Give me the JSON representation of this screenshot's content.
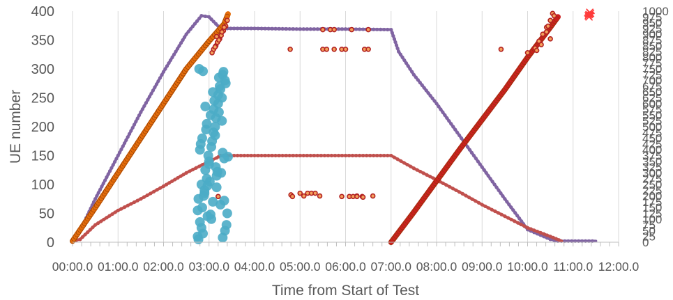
{
  "chart_data": {
    "type": "scatter",
    "title": "",
    "xlabel": "Time from Start of Test",
    "ylabel": "UE number",
    "xlim": [
      0,
      720
    ],
    "ylim": [
      0,
      400
    ],
    "y2lim": [
      0,
      1000
    ],
    "x_tick_values": [
      0,
      60,
      120,
      180,
      240,
      300,
      360,
      420,
      480,
      540,
      600,
      660,
      720
    ],
    "x_tick_labels": [
      "00:00.0",
      "01:00.0",
      "02:00.0",
      "03:00.0",
      "04:00.0",
      "05:00.0",
      "06:00.0",
      "07:00.0",
      "08:00.0",
      "09:00.0",
      "10:00.0",
      "11:00.0",
      "12:00.0"
    ],
    "y_ticks": [
      0,
      50,
      100,
      150,
      200,
      250,
      300,
      350,
      400
    ],
    "y2_ticks": [
      0,
      25,
      50,
      75,
      100,
      125,
      150,
      175,
      200,
      225,
      250,
      275,
      300,
      325,
      350,
      375,
      400,
      425,
      450,
      475,
      500,
      525,
      550,
      575,
      600,
      625,
      650,
      675,
      700,
      725,
      750,
      775,
      800,
      825,
      850,
      875,
      900,
      925,
      950,
      975,
      1000
    ],
    "grid": "vertical",
    "legend": "none",
    "series": [
      {
        "color": "#8064a2",
        "axis": "left",
        "kind": "line",
        "x": [
          0,
          10,
          30,
          60,
          90,
          120,
          150,
          170,
          180,
          195,
          240,
          300,
          360,
          420,
          430,
          450,
          480,
          510,
          540,
          570,
          600,
          630,
          640,
          690
        ],
        "y": [
          2,
          20,
          75,
          150,
          225,
          295,
          360,
          392,
          390,
          370,
          370,
          369,
          369,
          368,
          330,
          290,
          240,
          185,
          130,
          75,
          22,
          5,
          2,
          2
        ]
      },
      {
        "color": "#c0504d",
        "axis": "left",
        "kind": "line",
        "x": [
          0,
          10,
          30,
          60,
          90,
          120,
          150,
          180,
          190,
          195,
          240,
          300,
          360,
          420,
          450,
          480,
          510,
          540,
          570,
          600,
          630,
          645
        ],
        "y": [
          2,
          5,
          30,
          55,
          75,
          97,
          120,
          140,
          146,
          150,
          150,
          150,
          150,
          150,
          128,
          108,
          87,
          65,
          45,
          25,
          10,
          2
        ]
      },
      {
        "color": "#e46c0a",
        "axis": "left",
        "kind": "dense",
        "x": [
          0,
          30,
          60,
          90,
          120,
          150,
          180,
          200,
          205
        ],
        "y": [
          2,
          60,
          120,
          180,
          240,
          300,
          348,
          378,
          395
        ]
      },
      {
        "color": "#cc1f1f",
        "axis": "right",
        "kind": "dense",
        "x": [
          420,
          450,
          480,
          510,
          540,
          570,
          600,
          630,
          640
        ],
        "y": [
          0,
          130,
          265,
          400,
          530,
          660,
          800,
          930,
          975
        ]
      },
      {
        "color": "#4bacc6",
        "axis": "left",
        "kind": "points",
        "x": [
          165,
          168,
          171,
          174,
          177,
          180,
          183,
          186,
          189,
          192,
          195,
          198,
          201,
          204,
          166,
          170,
          175,
          179,
          184,
          188,
          193,
          197,
          202,
          167,
          172,
          178,
          185,
          190,
          196,
          200,
          169,
          176,
          182,
          187,
          194,
          199,
          203,
          165,
          173,
          181,
          189,
          198,
          171,
          177,
          186,
          192,
          201,
          166,
          183,
          195,
          174,
          190,
          180,
          168,
          188,
          197,
          175,
          185,
          193,
          170,
          182,
          200,
          178,
          191,
          205,
          198,
          172
        ],
        "y": [
          10,
          35,
          60,
          85,
          110,
          140,
          165,
          190,
          215,
          240,
          265,
          290,
          20,
          50,
          75,
          100,
          125,
          150,
          175,
          200,
          225,
          250,
          275,
          300,
          15,
          45,
          70,
          95,
          120,
          145,
          170,
          195,
          220,
          245,
          270,
          295,
          30,
          55,
          80,
          105,
          130,
          155,
          180,
          205,
          230,
          255,
          280,
          5,
          40,
          65,
          90,
          115,
          135,
          160,
          185,
          210,
          235,
          260,
          285,
          25,
          48,
          72,
          98,
          122,
          148,
          8,
          296
        ]
      },
      {
        "color": "#b22222",
        "axis": "right",
        "kind": "rings",
        "x": [
          184,
          186,
          189,
          191,
          194,
          196,
          199,
          202,
          204,
          188,
          193,
          200,
          190,
          197,
          287,
          288,
          290,
          300,
          305,
          310,
          315,
          320,
          326,
          330,
          340,
          345,
          355,
          360,
          365,
          368,
          375,
          385,
          390,
          330,
          335,
          355,
          345,
          382,
          383,
          390,
          396,
          370,
          375,
          565,
          600,
          610,
          615,
          620,
          625,
          630,
          633,
          635,
          625,
          630,
          192,
          612,
          618,
          627
        ],
        "y": [
          820,
          835,
          850,
          865,
          880,
          895,
          915,
          935,
          960,
          845,
          875,
          930,
          890,
          910,
          835,
          205,
          198,
          212,
          200,
          212,
          212,
          212,
          200,
          920,
          920,
          920,
          835,
          835,
          198,
          920,
          200,
          835,
          920,
          835,
          835,
          198,
          835,
          198,
          195,
          835,
          200,
          198,
          198,
          835,
          820,
          840,
          870,
          900,
          930,
          960,
          990,
          980,
          910,
          880,
          198,
          830,
          855,
          935
        ]
      },
      {
        "color": "#ff3b3b",
        "axis": "right",
        "kind": "stars",
        "x": [
          681,
          681,
          682,
          680,
          683
        ],
        "y": [
          985,
          975,
          995,
          980,
          990
        ]
      }
    ]
  }
}
